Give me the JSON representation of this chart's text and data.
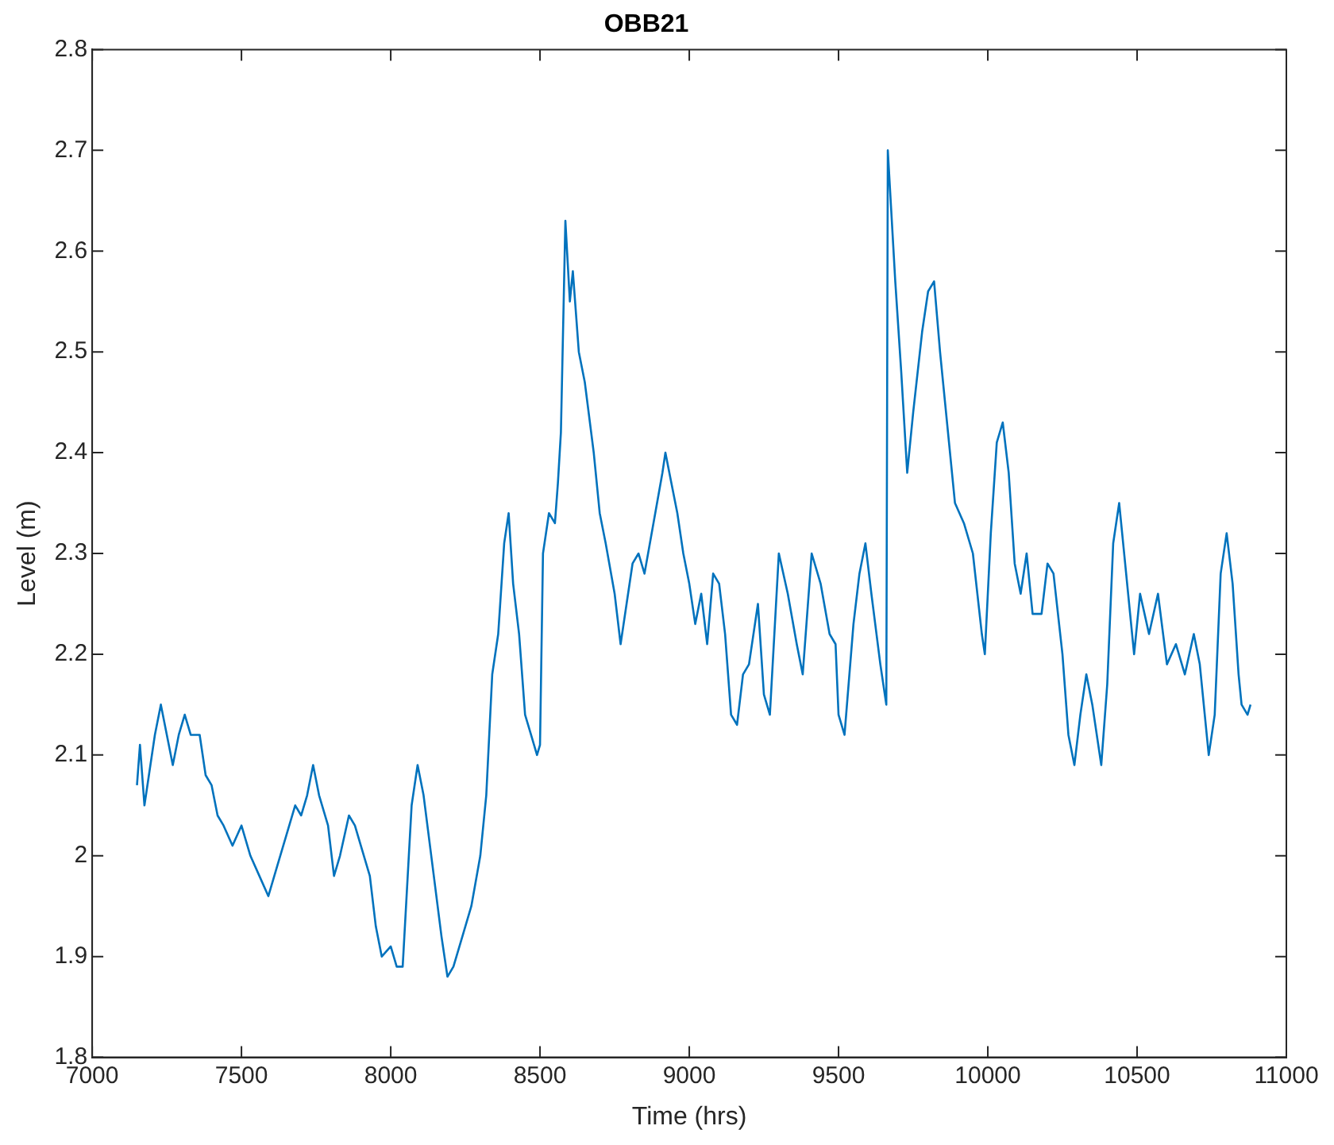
{
  "chart_data": {
    "type": "line",
    "title": "OBB21",
    "xlabel": "Time (hrs)",
    "ylabel": "Level (m)",
    "xlim": [
      7000,
      11000
    ],
    "xticks": [
      7000,
      7500,
      8000,
      8500,
      9000,
      9500,
      10000,
      10500,
      11000
    ],
    "ylim": [
      1.8,
      2.8
    ],
    "yticks": [
      1.8,
      1.9,
      {
        "value": 2,
        "label": "2"
      },
      2.1,
      2.2,
      2.3,
      2.4,
      2.5,
      2.6,
      2.7,
      2.8
    ],
    "grid": false,
    "legend": false,
    "marker": "none",
    "line_style": "solid",
    "series": [
      {
        "color": "#0072bd",
        "x": [
          7150,
          7160,
          7175,
          7190,
          7210,
          7230,
          7250,
          7270,
          7290,
          7310,
          7330,
          7360,
          7380,
          7400,
          7420,
          7440,
          7470,
          7500,
          7530,
          7560,
          7590,
          7620,
          7650,
          7680,
          7700,
          7720,
          7740,
          7760,
          7790,
          7810,
          7830,
          7860,
          7880,
          7900,
          7930,
          7950,
          7970,
          8000,
          8020,
          8040,
          8070,
          8090,
          8110,
          8140,
          8170,
          8190,
          8210,
          8240,
          8270,
          8300,
          8320,
          8340,
          8360,
          8380,
          8395,
          8410,
          8430,
          8450,
          8470,
          8490,
          8500,
          8510,
          8530,
          8550,
          8560,
          8570,
          8585,
          8600,
          8610,
          8630,
          8650,
          8680,
          8700,
          8720,
          8750,
          8770,
          8790,
          8810,
          8830,
          8850,
          8880,
          8910,
          8920,
          8940,
          8960,
          8980,
          9000,
          9020,
          9040,
          9060,
          9080,
          9100,
          9120,
          9140,
          9160,
          9180,
          9200,
          9230,
          9250,
          9270,
          9300,
          9330,
          9360,
          9380,
          9410,
          9440,
          9470,
          9490,
          9500,
          9520,
          9550,
          9570,
          9590,
          9610,
          9640,
          9660,
          9665,
          9690,
          9710,
          9730,
          9750,
          9780,
          9800,
          9820,
          9840,
          9870,
          9890,
          9920,
          9950,
          9980,
          9990,
          10010,
          10030,
          10050,
          10070,
          10090,
          10110,
          10130,
          10150,
          10180,
          10200,
          10220,
          10250,
          10270,
          10290,
          10310,
          10330,
          10350,
          10380,
          10400,
          10420,
          10440,
          10460,
          10490,
          10510,
          10540,
          10570,
          10600,
          10630,
          10660,
          10690,
          10710,
          10740,
          10760,
          10780,
          10800,
          10820,
          10840,
          10850,
          10870,
          10880
        ],
        "values": [
          2.07,
          2.11,
          2.05,
          2.08,
          2.12,
          2.15,
          2.12,
          2.09,
          2.12,
          2.14,
          2.12,
          2.12,
          2.08,
          2.07,
          2.04,
          2.03,
          2.01,
          2.03,
          2.0,
          1.98,
          1.96,
          1.99,
          2.02,
          2.05,
          2.04,
          2.06,
          2.09,
          2.06,
          2.03,
          1.98,
          2.0,
          2.04,
          2.03,
          2.01,
          1.98,
          1.93,
          1.9,
          1.91,
          1.89,
          1.89,
          2.05,
          2.09,
          2.06,
          1.99,
          1.92,
          1.88,
          1.89,
          1.92,
          1.95,
          2.0,
          2.06,
          2.18,
          2.22,
          2.31,
          2.34,
          2.27,
          2.22,
          2.14,
          2.12,
          2.1,
          2.11,
          2.3,
          2.34,
          2.33,
          2.37,
          2.42,
          2.63,
          2.55,
          2.58,
          2.5,
          2.47,
          2.4,
          2.34,
          2.31,
          2.26,
          2.21,
          2.25,
          2.29,
          2.3,
          2.28,
          2.33,
          2.38,
          2.4,
          2.37,
          2.34,
          2.3,
          2.27,
          2.23,
          2.26,
          2.21,
          2.28,
          2.27,
          2.22,
          2.14,
          2.13,
          2.18,
          2.19,
          2.25,
          2.16,
          2.14,
          2.3,
          2.26,
          2.21,
          2.18,
          2.3,
          2.27,
          2.22,
          2.21,
          2.14,
          2.12,
          2.23,
          2.28,
          2.31,
          2.26,
          2.19,
          2.15,
          2.7,
          2.57,
          2.48,
          2.38,
          2.44,
          2.52,
          2.56,
          2.57,
          2.5,
          2.41,
          2.35,
          2.33,
          2.3,
          2.22,
          2.2,
          2.32,
          2.41,
          2.43,
          2.38,
          2.29,
          2.26,
          2.3,
          2.24,
          2.24,
          2.29,
          2.28,
          2.2,
          2.12,
          2.09,
          2.14,
          2.18,
          2.15,
          2.09,
          2.17,
          2.31,
          2.35,
          2.29,
          2.2,
          2.26,
          2.22,
          2.26,
          2.19,
          2.21,
          2.18,
          2.22,
          2.19,
          2.1,
          2.14,
          2.28,
          2.32,
          2.27,
          2.18,
          2.15,
          2.14,
          2.15
        ]
      }
    ]
  }
}
